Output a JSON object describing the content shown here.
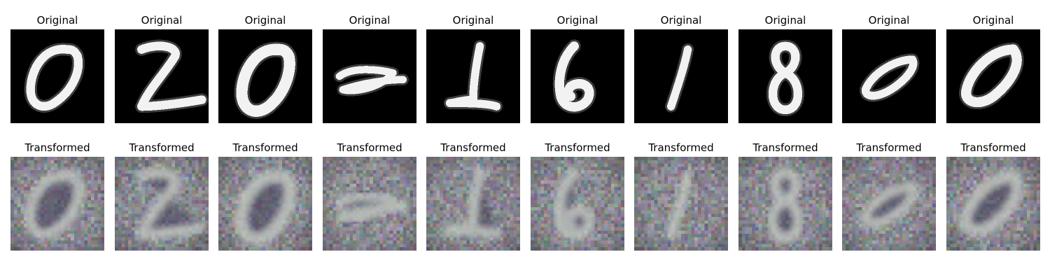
{
  "rows": [
    {
      "title": "Original",
      "style": "clean",
      "digits": [
        "0",
        "2",
        "0",
        "2",
        "2",
        "6",
        "1",
        "8",
        "0",
        "0"
      ]
    },
    {
      "title": "Transformed",
      "style": "noisy",
      "digits": [
        "0",
        "2",
        "0",
        "2",
        "2",
        "6",
        "1",
        "8",
        "0",
        "0"
      ]
    }
  ],
  "colors": {
    "clean_background": "#000000",
    "clean_stroke": "#f2f2f2",
    "noisy_background": "#8a8690",
    "noisy_stroke": "#c9cfc6",
    "noisy_inner": "#3e3c55"
  }
}
